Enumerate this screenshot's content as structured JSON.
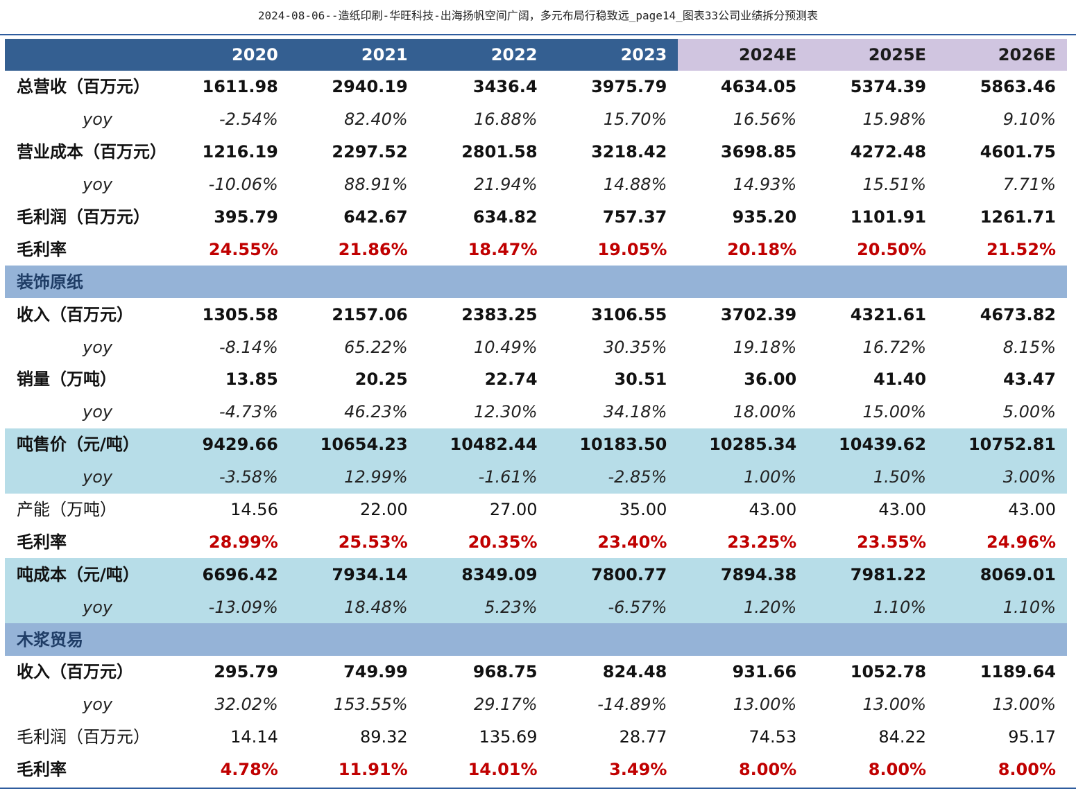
{
  "title": "2024-08-06--造纸印刷-华旺科技-出海扬帆空间广阔，多元布局行稳致远_page14_图表33公司业绩拆分预测表",
  "colors": {
    "header_bg": "#345f91",
    "forecast_header_bg": "#d0c5e0",
    "section_bg": "#95b3d7",
    "highlight_row_bg": "#b7dde8",
    "margin_text": "#c00000",
    "rule": "#2e5c9e"
  },
  "header": {
    "corner": "",
    "years": [
      "2020",
      "2021",
      "2022",
      "2023",
      "2024E",
      "2025E",
      "2026E"
    ]
  },
  "rows": [
    {
      "label": "总营收（百万元）",
      "values": [
        "1611.98",
        "2940.19",
        "3436.4",
        "3975.79",
        "4634.05",
        "5374.39",
        "5863.46"
      ]
    },
    {
      "label": "yoy",
      "values": [
        "-2.54%",
        "82.40%",
        "16.88%",
        "15.70%",
        "16.56%",
        "15.98%",
        "9.10%"
      ]
    },
    {
      "label": "营业成本（百万元）",
      "values": [
        "1216.19",
        "2297.52",
        "2801.58",
        "3218.42",
        "3698.85",
        "4272.48",
        "4601.75"
      ]
    },
    {
      "label": "yoy",
      "values": [
        "-10.06%",
        "88.91%",
        "21.94%",
        "14.88%",
        "14.93%",
        "15.51%",
        "7.71%"
      ]
    },
    {
      "label": "毛利润（百万元）",
      "values": [
        "395.79",
        "642.67",
        "634.82",
        "757.37",
        "935.20",
        "1101.91",
        "1261.71"
      ]
    },
    {
      "label": "毛利率",
      "values": [
        "24.55%",
        "21.86%",
        "18.47%",
        "19.05%",
        "20.18%",
        "20.50%",
        "21.52%"
      ]
    },
    {
      "label": "装饰原纸"
    },
    {
      "label": "收入（百万元）",
      "values": [
        "1305.58",
        "2157.06",
        "2383.25",
        "3106.55",
        "3702.39",
        "4321.61",
        "4673.82"
      ]
    },
    {
      "label": "yoy",
      "values": [
        "-8.14%",
        "65.22%",
        "10.49%",
        "30.35%",
        "19.18%",
        "16.72%",
        "8.15%"
      ]
    },
    {
      "label": "销量（万吨）",
      "values": [
        "13.85",
        "20.25",
        "22.74",
        "30.51",
        "36.00",
        "41.40",
        "43.47"
      ]
    },
    {
      "label": "yoy",
      "values": [
        "-4.73%",
        "46.23%",
        "12.30%",
        "34.18%",
        "18.00%",
        "15.00%",
        "5.00%"
      ]
    },
    {
      "label": "吨售价（元/吨）",
      "values": [
        "9429.66",
        "10654.23",
        "10482.44",
        "10183.50",
        "10285.34",
        "10439.62",
        "10752.81"
      ]
    },
    {
      "label": "yoy",
      "values": [
        "-3.58%",
        "12.99%",
        "-1.61%",
        "-2.85%",
        "1.00%",
        "1.50%",
        "3.00%"
      ]
    },
    {
      "label": "产能（万吨）",
      "values": [
        "14.56",
        "22.00",
        "27.00",
        "35.00",
        "43.00",
        "43.00",
        "43.00"
      ]
    },
    {
      "label": "毛利率",
      "values": [
        "28.99%",
        "25.53%",
        "20.35%",
        "23.40%",
        "23.25%",
        "23.55%",
        "24.96%"
      ]
    },
    {
      "label": "吨成本（元/吨）",
      "values": [
        "6696.42",
        "7934.14",
        "8349.09",
        "7800.77",
        "7894.38",
        "7981.22",
        "8069.01"
      ]
    },
    {
      "label": "yoy",
      "values": [
        "-13.09%",
        "18.48%",
        "5.23%",
        "-6.57%",
        "1.20%",
        "1.10%",
        "1.10%"
      ]
    },
    {
      "label": "木浆贸易"
    },
    {
      "label": "收入（百万元）",
      "values": [
        "295.79",
        "749.99",
        "968.75",
        "824.48",
        "931.66",
        "1052.78",
        "1189.64"
      ]
    },
    {
      "label": "yoy",
      "values": [
        "32.02%",
        "153.55%",
        "29.17%",
        "-14.89%",
        "13.00%",
        "13.00%",
        "13.00%"
      ]
    },
    {
      "label": "毛利润（百万元）",
      "values": [
        "14.14",
        "89.32",
        "135.69",
        "28.77",
        "74.53",
        "84.22",
        "95.17"
      ]
    },
    {
      "label": "毛利率",
      "values": [
        "4.78%",
        "11.91%",
        "14.01%",
        "3.49%",
        "8.00%",
        "8.00%",
        "8.00%"
      ]
    }
  ]
}
